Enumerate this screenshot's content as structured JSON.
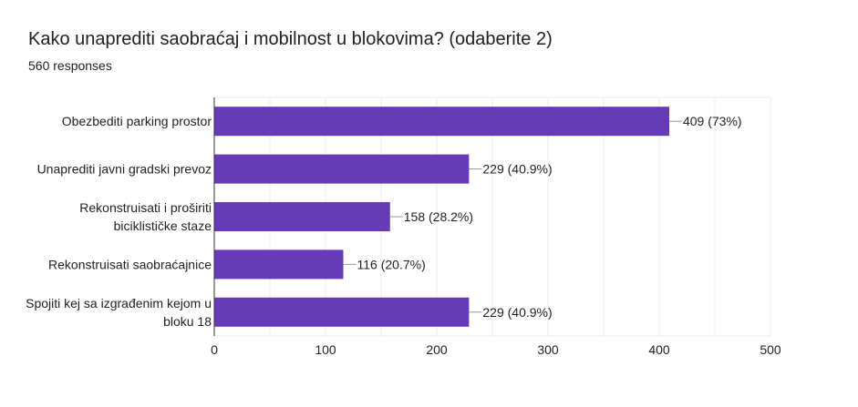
{
  "title": "Kako unaprediti saobraćaj i mobilnost u blokovima? (odaberite 2)",
  "responses": "560 responses",
  "chart_data": {
    "type": "bar",
    "orientation": "horizontal",
    "categories": [
      [
        "Obezbediti parking prostor"
      ],
      [
        "Unaprediti javni gradski prevoz"
      ],
      [
        "Rekonstruisati i proširiti",
        "biciklističke staze"
      ],
      [
        "Rekonstruisati saobraćajnice"
      ],
      [
        "Spojiti kej sa izgrađenim kejom u",
        "bloku 18"
      ]
    ],
    "values": [
      409,
      229,
      158,
      116,
      229
    ],
    "data_labels": [
      "409 (73%)",
      "229 (40.9%)",
      "158 (28.2%)",
      "116 (20.7%)",
      "229 (40.9%)"
    ],
    "xlim": [
      0,
      500
    ],
    "xticks": [
      0,
      100,
      200,
      300,
      400,
      500
    ],
    "minor_grid_step": 50,
    "grid": true,
    "bar_color": "#673ab7"
  }
}
